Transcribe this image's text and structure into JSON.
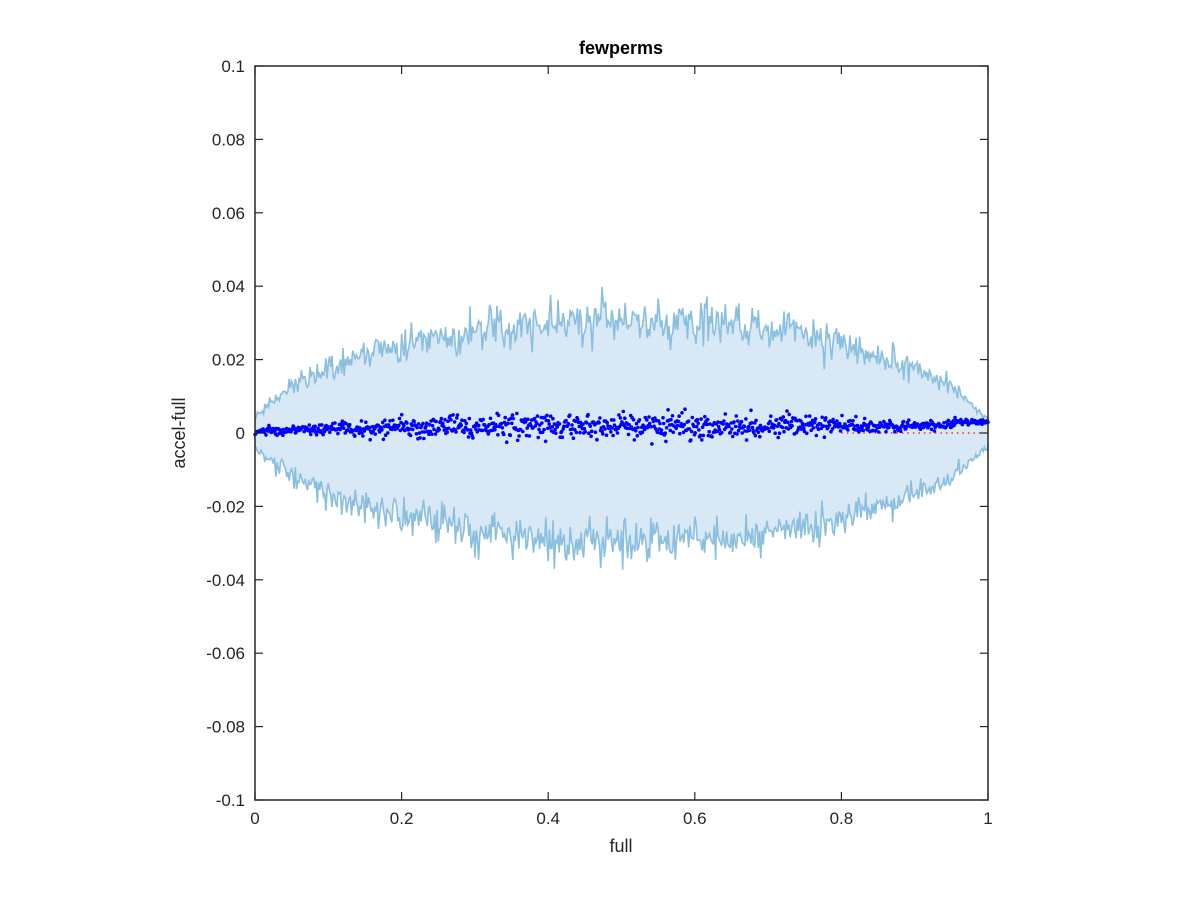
{
  "chart_data": {
    "type": "scatter",
    "title": "fewperms",
    "xlabel": "full",
    "ylabel": "accel-full",
    "xlim": [
      0,
      1
    ],
    "ylim": [
      -0.1,
      0.1
    ],
    "x_ticks": [
      "0",
      "0.2",
      "0.4",
      "0.6",
      "0.8",
      "1"
    ],
    "y_ticks": [
      "-0.1",
      "-0.08",
      "-0.06",
      "-0.04",
      "-0.02",
      "0",
      "0.02",
      "0.04",
      "0.06",
      "0.08",
      "0.1"
    ],
    "grid": false,
    "envelope": {
      "description_x": [
        0,
        0.05,
        0.1,
        0.2,
        0.3,
        0.4,
        0.5,
        0.6,
        0.7,
        0.8,
        0.9,
        0.95,
        1
      ],
      "upper": [
        0.004,
        0.013,
        0.018,
        0.024,
        0.028,
        0.03,
        0.031,
        0.03,
        0.028,
        0.024,
        0.018,
        0.013,
        0.004
      ],
      "lower": [
        -0.004,
        -0.012,
        -0.017,
        -0.023,
        -0.027,
        -0.029,
        -0.03,
        -0.029,
        -0.027,
        -0.023,
        -0.017,
        -0.012,
        -0.004
      ],
      "band_color": "#d9e8f5",
      "line_color": "#8abfe0"
    },
    "series": [
      {
        "marker_color": "#0000ff",
        "x": [
          0.0,
          0.02,
          0.04,
          0.06,
          0.08,
          0.1,
          0.12,
          0.14,
          0.16,
          0.18,
          0.2,
          0.22,
          0.24,
          0.26,
          0.28,
          0.3,
          0.32,
          0.34,
          0.36,
          0.38,
          0.4,
          0.42,
          0.44,
          0.46,
          0.48,
          0.5,
          0.52,
          0.54,
          0.56,
          0.58,
          0.6,
          0.62,
          0.64,
          0.66,
          0.68,
          0.7,
          0.72,
          0.74,
          0.76,
          0.78,
          0.8,
          0.82,
          0.84,
          0.86,
          0.88,
          0.9,
          0.92,
          0.94,
          0.96,
          0.98,
          1.0
        ],
        "y": [
          0.0,
          0.001,
          0.0,
          0.001,
          0.001,
          0.001,
          0.002,
          0.001,
          0.001,
          0.002,
          0.002,
          0.001,
          0.001,
          0.002,
          0.002,
          0.001,
          0.002,
          0.002,
          0.002,
          0.002,
          0.002,
          0.001,
          0.002,
          0.002,
          0.002,
          0.002,
          0.002,
          0.002,
          0.002,
          0.002,
          0.002,
          0.002,
          0.002,
          0.002,
          0.002,
          0.002,
          0.002,
          0.002,
          0.002,
          0.002,
          0.002,
          0.002,
          0.002,
          0.002,
          0.002,
          0.002,
          0.002,
          0.002,
          0.003,
          0.003,
          0.003
        ],
        "spread": [
          0.001,
          0.002,
          0.002,
          0.002,
          0.003,
          0.003,
          0.003,
          0.004,
          0.004,
          0.004,
          0.004,
          0.005,
          0.005,
          0.005,
          0.005,
          0.005,
          0.006,
          0.006,
          0.006,
          0.006,
          0.006,
          0.006,
          0.006,
          0.006,
          0.006,
          0.006,
          0.006,
          0.006,
          0.006,
          0.006,
          0.006,
          0.006,
          0.006,
          0.005,
          0.005,
          0.005,
          0.005,
          0.005,
          0.005,
          0.004,
          0.004,
          0.004,
          0.003,
          0.003,
          0.003,
          0.002,
          0.002,
          0.002,
          0.002,
          0.001,
          0.001
        ]
      }
    ],
    "reference_line": {
      "y": 0,
      "color": "#ff0000",
      "style": "dotted"
    }
  }
}
